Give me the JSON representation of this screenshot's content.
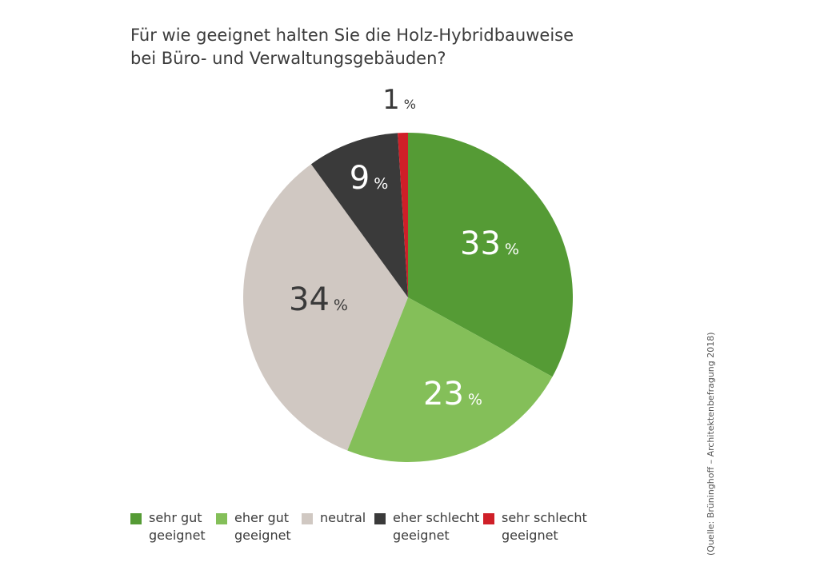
{
  "title": {
    "line1": "Für wie geeignet halten Sie die Holz-Hybridbauweise",
    "line2": "bei Büro- und Verwaltungsgebäuden?"
  },
  "chart_data": {
    "type": "pie",
    "title": "Für wie geeignet halten Sie die Holz-Hybridbauweise bei Büro- und Verwaltungsgebäuden?",
    "start": "12 o'clock, clockwise",
    "slices": [
      {
        "label": "sehr gut geeignet",
        "value": 33,
        "display": "33",
        "unit": "%",
        "color": "#559b35",
        "label_color": "#ffffff"
      },
      {
        "label": "eher gut geeignet",
        "value": 23,
        "display": "23",
        "unit": "%",
        "color": "#84bf59",
        "label_color": "#ffffff"
      },
      {
        "label": "neutral",
        "value": 34,
        "display": "34",
        "unit": "%",
        "color": "#d0c8c2",
        "label_color": "#3a3a3a"
      },
      {
        "label": "eher schlecht geeignet",
        "value": 9,
        "display": "9",
        "unit": "%",
        "color": "#3a3a3a",
        "label_color": "#ffffff"
      },
      {
        "label": "sehr schlecht geeignet",
        "value": 1,
        "display": "1",
        "unit": "%",
        "color": "#cf1f28",
        "label_color": "#3a3a3a"
      }
    ]
  },
  "legend": [
    {
      "line1": "sehr gut",
      "line2": "geeignet",
      "color": "#559b35"
    },
    {
      "line1": "eher gut",
      "line2": "geeignet",
      "color": "#84bf59"
    },
    {
      "line1": "neutral",
      "line2": "",
      "color": "#d0c8c2"
    },
    {
      "line1": "eher schlecht",
      "line2": "geeignet",
      "color": "#3a3a3a"
    },
    {
      "line1": "sehr schlecht",
      "line2": "geeignet",
      "color": "#cf1f28"
    }
  ],
  "source": "(Quelle: Brüninghoff – Architektenbefragung 2018)"
}
